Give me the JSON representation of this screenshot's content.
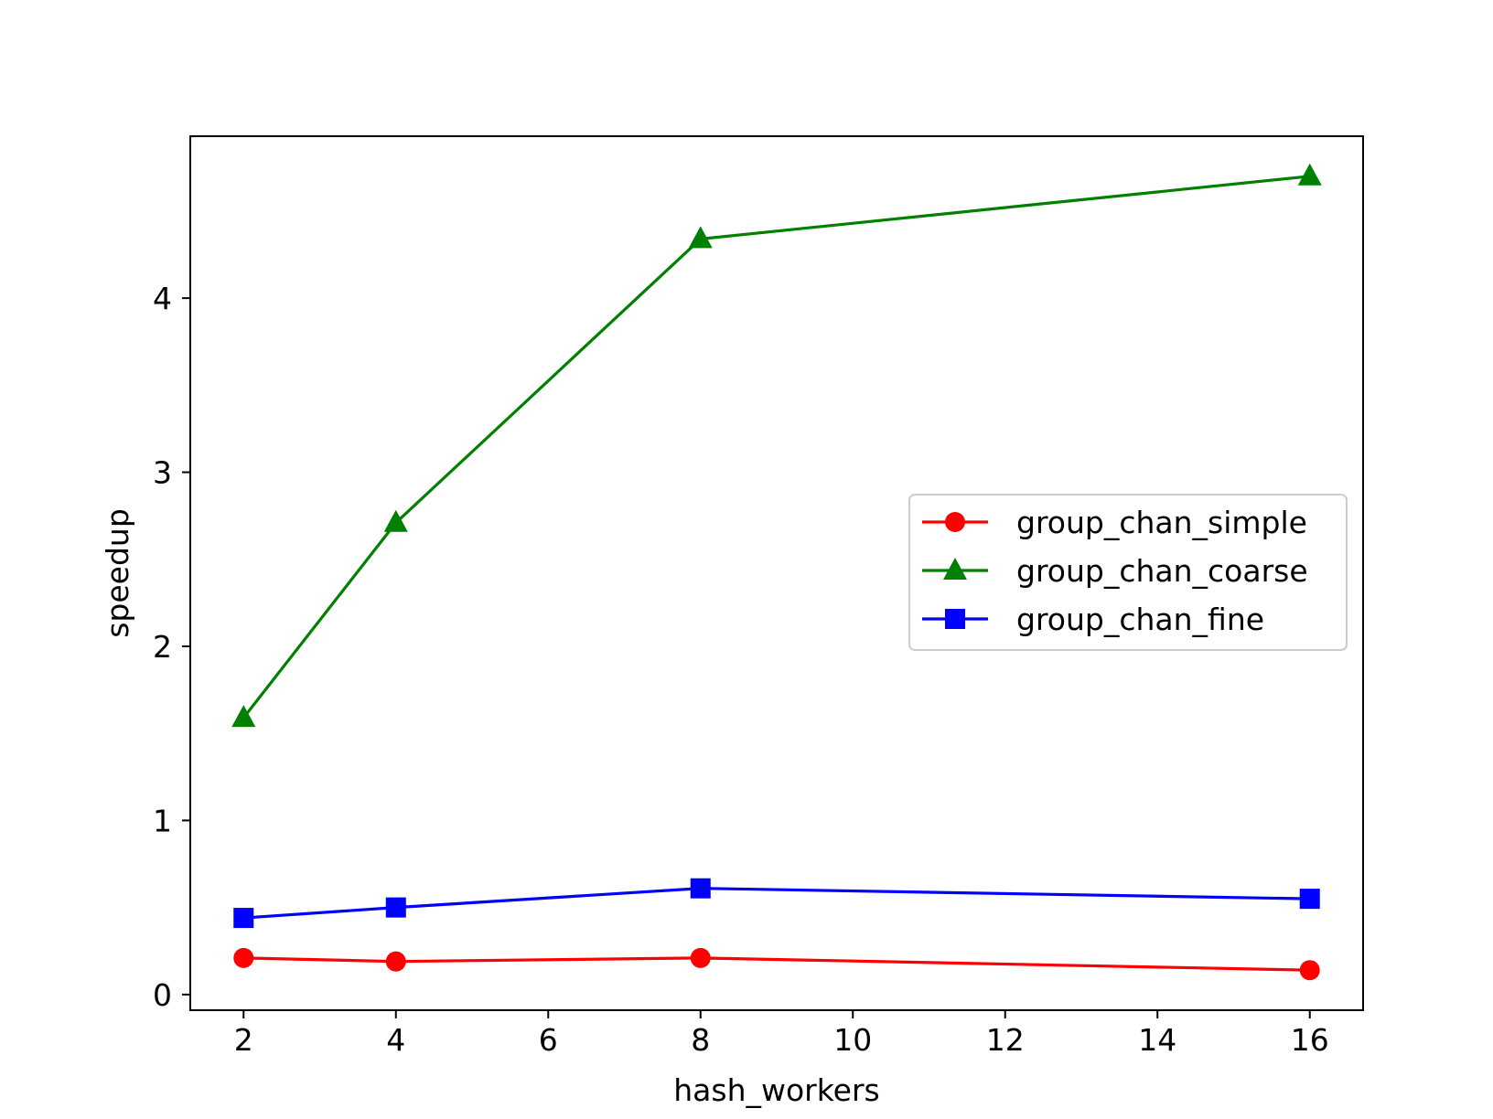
{
  "chart_data": {
    "type": "line",
    "title": "",
    "xlabel": "hash_workers",
    "ylabel": "speedup",
    "x": [
      2,
      4,
      8,
      16
    ],
    "xlim": [
      1.3,
      16.7
    ],
    "ylim": [
      -0.09,
      4.93
    ],
    "xticks": [
      2,
      4,
      6,
      8,
      10,
      12,
      14,
      16
    ],
    "yticks": [
      0,
      1,
      2,
      3,
      4
    ],
    "grid": false,
    "legend_position": "center-right",
    "series": [
      {
        "name": "group_chan_simple",
        "color": "#ff0000",
        "marker": "circle",
        "values": [
          0.21,
          0.19,
          0.21,
          0.14
        ]
      },
      {
        "name": "group_chan_coarse",
        "color": "#008000",
        "marker": "triangle",
        "values": [
          1.59,
          2.71,
          4.34,
          4.7
        ]
      },
      {
        "name": "group_chan_fine",
        "color": "#0000ff",
        "marker": "square",
        "values": [
          0.44,
          0.5,
          0.61,
          0.55
        ]
      }
    ]
  }
}
